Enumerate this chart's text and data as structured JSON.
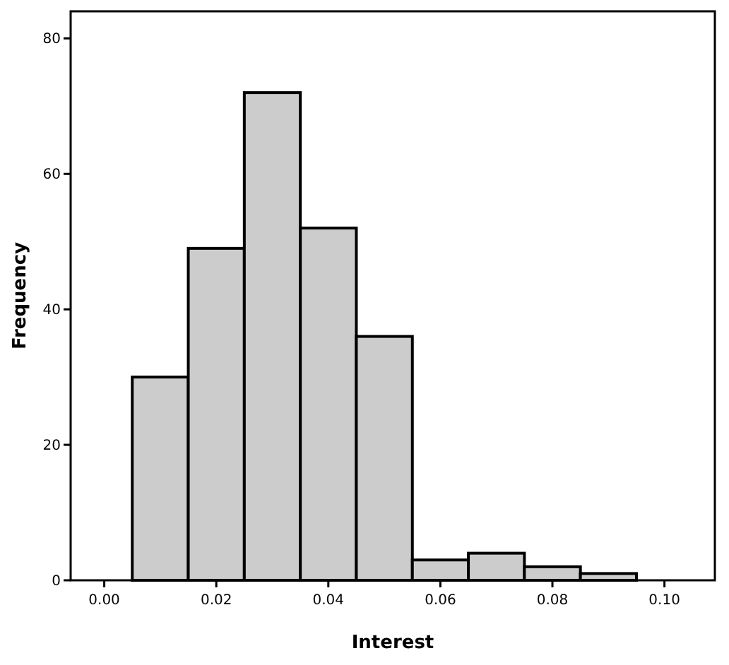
{
  "chart_data": {
    "type": "histogram",
    "xlabel": "Interest",
    "ylabel": "Frequency",
    "bins": [
      0.005,
      0.015,
      0.025,
      0.035,
      0.045,
      0.055,
      0.065,
      0.075,
      0.085,
      0.095
    ],
    "values": [
      30,
      49,
      72,
      52,
      36,
      3,
      4,
      2,
      1
    ],
    "color": "#cccccc",
    "xlim": [
      -0.006,
      0.109
    ],
    "ylim": [
      0,
      84
    ],
    "xticks": [
      {
        "value": 0,
        "label": "0.00"
      },
      {
        "value": 0.02,
        "label": "0.02"
      },
      {
        "value": 0.04,
        "label": "0.04"
      },
      {
        "value": 0.06,
        "label": "0.06"
      },
      {
        "value": 0.08,
        "label": "0.08"
      },
      {
        "value": 0.1,
        "label": "0.10"
      }
    ],
    "yticks": [
      0,
      20,
      40,
      60,
      80
    ],
    "grid": false
  }
}
